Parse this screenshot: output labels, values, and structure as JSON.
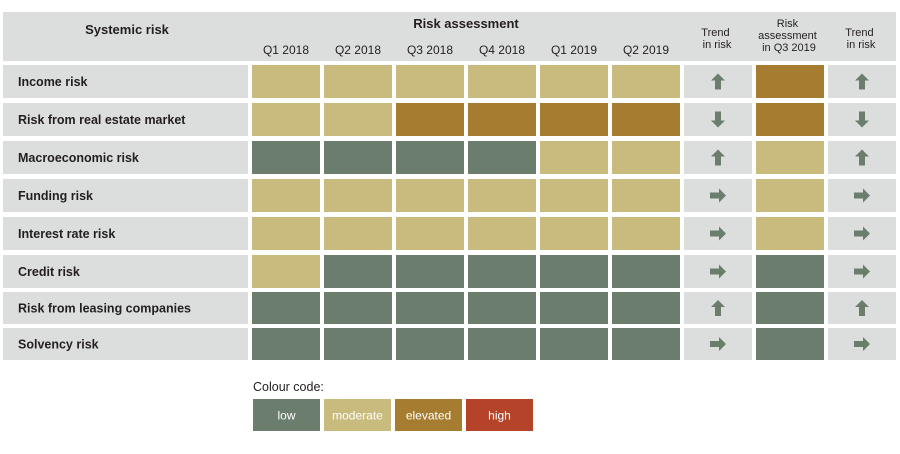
{
  "header": {
    "systemic_risk": "Systemic risk",
    "risk_assessment": "Risk assessment",
    "trend_1": [
      "Trend",
      "in risk"
    ],
    "risk_assessment_q3": [
      "Risk",
      "assessment",
      "in Q3 2019"
    ],
    "trend_2": [
      "Trend",
      "in risk"
    ]
  },
  "colors": {
    "low": "#6b7d6d",
    "moderate": "#c9ba7e",
    "elevated": "#a57c30",
    "high": "#b5432a",
    "header_bg": "#dcdedd",
    "row_bg": "#dcdedd",
    "arrow": "#6b7d6d"
  },
  "chart_data": {
    "type": "heatmap",
    "title": "",
    "columns": [
      "Q1 2018",
      "Q2 2018",
      "Q3 2018",
      "Q4 2018",
      "Q1 2019",
      "Q2 2019"
    ],
    "rows": [
      {
        "name": "Income risk",
        "levels": [
          "moderate",
          "moderate",
          "moderate",
          "moderate",
          "moderate",
          "moderate"
        ],
        "trend_1": "up",
        "q3_2019": "elevated",
        "trend_2": "up"
      },
      {
        "name": "Risk from real estate market",
        "levels": [
          "moderate",
          "moderate",
          "elevated",
          "elevated",
          "elevated",
          "elevated"
        ],
        "trend_1": "down",
        "q3_2019": "elevated",
        "trend_2": "down"
      },
      {
        "name": "Macroeconomic risk",
        "levels": [
          "low",
          "low",
          "low",
          "low",
          "moderate",
          "moderate"
        ],
        "trend_1": "up",
        "q3_2019": "moderate",
        "trend_2": "up"
      },
      {
        "name": "Funding risk",
        "levels": [
          "moderate",
          "moderate",
          "moderate",
          "moderate",
          "moderate",
          "moderate"
        ],
        "trend_1": "right",
        "q3_2019": "moderate",
        "trend_2": "right"
      },
      {
        "name": "Interest rate risk",
        "levels": [
          "moderate",
          "moderate",
          "moderate",
          "moderate",
          "moderate",
          "moderate"
        ],
        "trend_1": "right",
        "q3_2019": "moderate",
        "trend_2": "right"
      },
      {
        "name": "Credit risk",
        "levels": [
          "moderate",
          "low",
          "low",
          "low",
          "low",
          "low"
        ],
        "trend_1": "right",
        "q3_2019": "low",
        "trend_2": "right"
      },
      {
        "name": "Risk from leasing companies",
        "levels": [
          "low",
          "low",
          "low",
          "low",
          "low",
          "low"
        ],
        "trend_1": "up",
        "q3_2019": "low",
        "trend_2": "up"
      },
      {
        "name": "Solvency risk",
        "levels": [
          "low",
          "low",
          "low",
          "low",
          "low",
          "low"
        ],
        "trend_1": "right",
        "q3_2019": "low",
        "trend_2": "right"
      }
    ],
    "legend": {
      "title": "Colour code:",
      "items": [
        {
          "level": "low",
          "label": "low"
        },
        {
          "level": "moderate",
          "label": "moderate"
        },
        {
          "level": "elevated",
          "label": "elevated"
        },
        {
          "level": "high",
          "label": "high"
        }
      ]
    }
  }
}
